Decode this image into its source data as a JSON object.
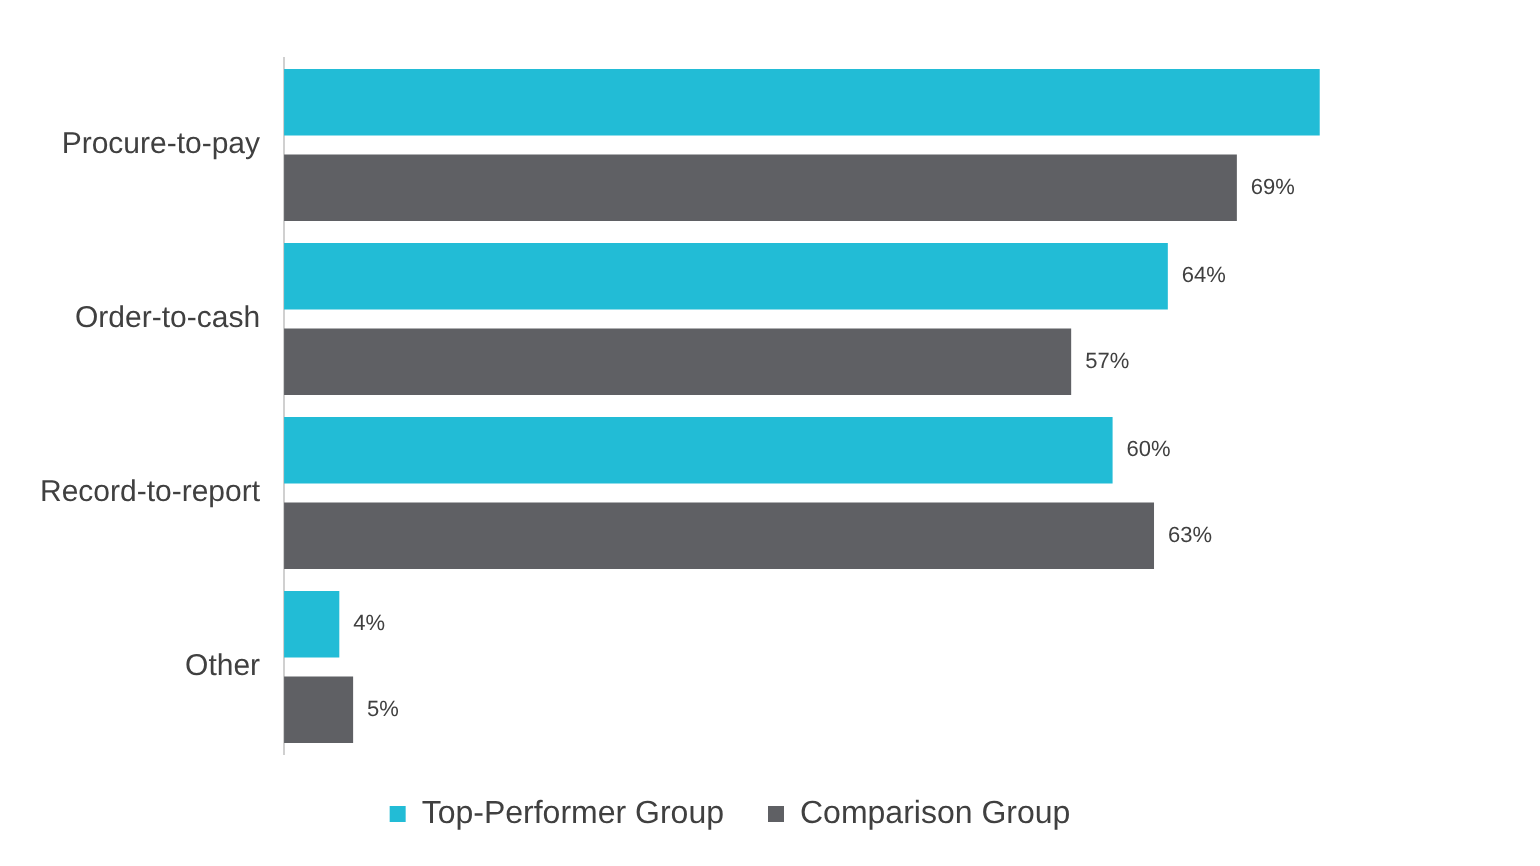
{
  "chart_data": {
    "type": "bar",
    "orientation": "horizontal",
    "categories": [
      "Procure-to-pay",
      "Order-to-cash",
      "Record-to-report",
      "Other"
    ],
    "series": [
      {
        "name": "Top-Performer Group",
        "color": "#22bcd6",
        "values": [
          75,
          64,
          60,
          4
        ],
        "value_labels": [
          null,
          "64%",
          "60%",
          "4%"
        ]
      },
      {
        "name": "Comparison Group",
        "color": "#5f6064",
        "values": [
          69,
          57,
          63,
          5
        ],
        "value_labels": [
          "69%",
          "57%",
          "63%",
          "5%"
        ]
      }
    ],
    "legend": "bottom",
    "tick_labels": "y"
  }
}
